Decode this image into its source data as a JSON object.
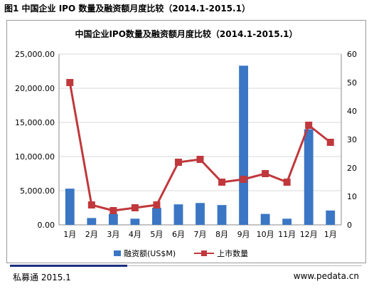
{
  "figure_caption": "图1 中国企业 IPO 数量及融资额月度比较（2014.1-2015.1）",
  "footer": {
    "source": "私募通 2015.1",
    "website": "www.pedata.cn"
  },
  "colors": {
    "bars": "#3a76c4",
    "line": "#c0383c",
    "grid": "#d9d9d9",
    "frame": "#9a9a9a",
    "footer_rule": "#1d2f7f"
  },
  "chart_data": {
    "type": "bar",
    "title": "中国企业IPO数量及融资额月度比较（2014.1-2015.1）",
    "categories": [
      "1月",
      "2月",
      "3月",
      "4月",
      "5月",
      "6月",
      "7月",
      "8月",
      "9月",
      "10月",
      "11月",
      "12月",
      "1月"
    ],
    "left_axis": {
      "ylim": [
        0,
        25000
      ],
      "ticks": [
        "0.00",
        "5,000.00",
        "10,000.00",
        "15,000.00",
        "20,000.00",
        "25,000.00"
      ]
    },
    "right_axis": {
      "ylim": [
        0,
        60
      ],
      "ticks": [
        "0",
        "10",
        "20",
        "30",
        "40",
        "50",
        "60"
      ]
    },
    "grid": true,
    "legend_position": "bottom",
    "series": [
      {
        "name": "融资额(US$M)",
        "type": "bar",
        "axis": "left",
        "values": [
          5300,
          1000,
          1600,
          900,
          2500,
          3000,
          3200,
          2900,
          23300,
          1600,
          900,
          14000,
          2100
        ]
      },
      {
        "name": "上市数量",
        "type": "line",
        "axis": "right",
        "values": [
          50,
          7,
          5,
          6,
          7,
          22,
          23,
          15,
          16,
          18,
          15,
          35,
          29
        ]
      }
    ]
  }
}
